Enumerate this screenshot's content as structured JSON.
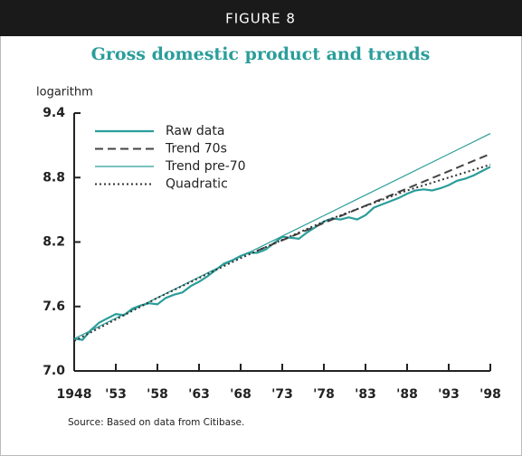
{
  "figure_label": "FIGURE 8",
  "chart_data": {
    "type": "line",
    "title": "Gross domestic product and trends",
    "y_label": "logarithm",
    "source": "Source: Based on data from Citibase.",
    "xlim": [
      1948,
      1998
    ],
    "xticks": [
      1948,
      {
        "value": 1953,
        "label": "'53"
      },
      {
        "value": 1958,
        "label": "'58"
      },
      {
        "value": 1963,
        "label": "'63"
      },
      {
        "value": 1968,
        "label": "'68"
      },
      {
        "value": 1973,
        "label": "'73"
      },
      {
        "value": 1978,
        "label": "'78"
      },
      {
        "value": 1983,
        "label": "'83"
      },
      {
        "value": 1988,
        "label": "'88"
      },
      {
        "value": 1993,
        "label": "'93"
      },
      {
        "value": 1998,
        "label": "'98"
      }
    ],
    "ylim": [
      7.0,
      9.4
    ],
    "yticks": [
      {
        "value": 7.0,
        "label": "7.0"
      },
      7.6,
      8.2,
      8.8,
      9.4
    ],
    "legend": "top-left",
    "series": [
      {
        "name": "Raw data",
        "color": "#2a9d9a",
        "style": "solid",
        "width": 2.2,
        "x": [
          1948,
          1949,
          1950,
          1951,
          1952,
          1953,
          1954,
          1955,
          1956,
          1957,
          1958,
          1959,
          1960,
          1961,
          1962,
          1963,
          1964,
          1965,
          1966,
          1967,
          1968,
          1969,
          1970,
          1971,
          1972,
          1973,
          1974,
          1975,
          1976,
          1977,
          1978,
          1979,
          1980,
          1981,
          1982,
          1983,
          1984,
          1985,
          1986,
          1987,
          1988,
          1989,
          1990,
          1991,
          1992,
          1993,
          1994,
          1995,
          1996,
          1997,
          1998
        ],
        "values": [
          7.3,
          7.29,
          7.38,
          7.45,
          7.49,
          7.53,
          7.52,
          7.58,
          7.61,
          7.63,
          7.62,
          7.68,
          7.71,
          7.73,
          7.79,
          7.83,
          7.88,
          7.94,
          8.0,
          8.03,
          8.07,
          8.1,
          8.1,
          8.13,
          8.19,
          8.25,
          8.24,
          8.23,
          8.29,
          8.34,
          8.39,
          8.42,
          8.41,
          8.43,
          8.41,
          8.45,
          8.52,
          8.55,
          8.58,
          8.61,
          8.65,
          8.68,
          8.69,
          8.68,
          8.7,
          8.73,
          8.77,
          8.79,
          8.82,
          8.86,
          8.9
        ]
      },
      {
        "name": "Trend 70s",
        "color": "#444444",
        "style": "dashed",
        "width": 2,
        "x": [
          1970,
          1998
        ],
        "values": [
          8.12,
          9.02
        ]
      },
      {
        "name": "Trend pre-70",
        "color": "#2a9d9a",
        "style": "solid",
        "width": 1.2,
        "x": [
          1948,
          1998
        ],
        "values": [
          7.3,
          9.21
        ]
      },
      {
        "name": "Quadratic",
        "color": "#333333",
        "style": "dotted",
        "width": 2,
        "x": [
          1948,
          1958,
          1968,
          1978,
          1988,
          1998
        ],
        "values": [
          7.28,
          7.68,
          8.05,
          8.39,
          8.68,
          8.92
        ]
      }
    ]
  }
}
